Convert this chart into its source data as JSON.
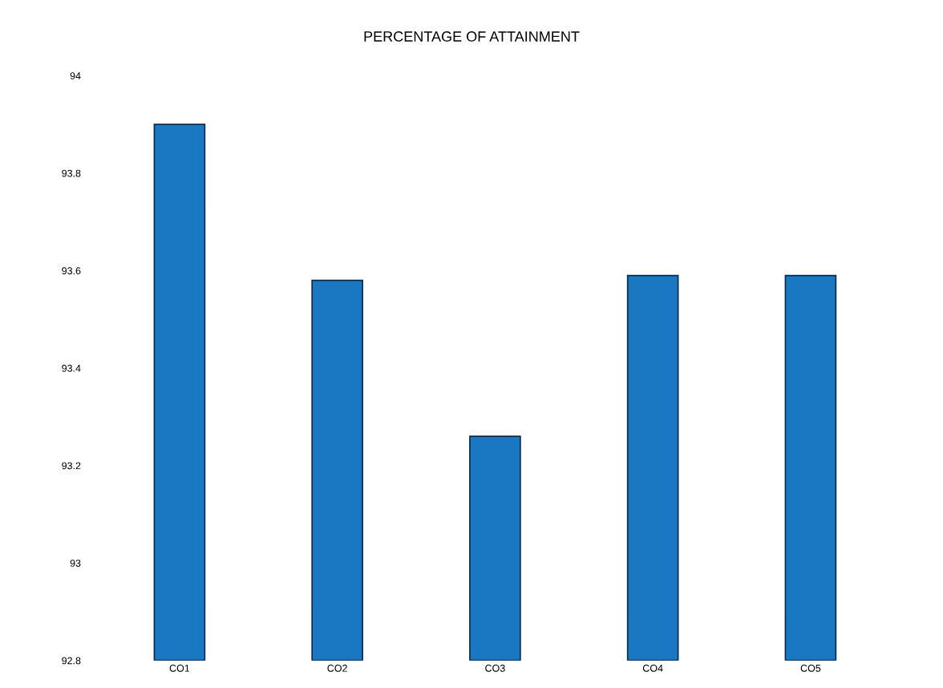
{
  "chart_data": {
    "type": "bar",
    "title": "PERCENTAGE OF ATTAINMENT",
    "categories": [
      "CO1",
      "CO2",
      "CO3",
      "CO4",
      "CO5"
    ],
    "values": [
      93.9,
      93.58,
      93.26,
      93.59,
      93.59
    ],
    "color": "#1a78c2",
    "ylim": [
      92.8,
      94
    ],
    "yticks": [
      {
        "value": 92.8,
        "label": "92.8"
      },
      93,
      {
        "value": 93.2,
        "label": "93.2"
      },
      {
        "value": 93.4,
        "label": "93.4"
      },
      {
        "value": 93.6,
        "label": "93.6"
      },
      {
        "value": 93.8,
        "label": "93.8"
      },
      94
    ],
    "grid": false
  }
}
